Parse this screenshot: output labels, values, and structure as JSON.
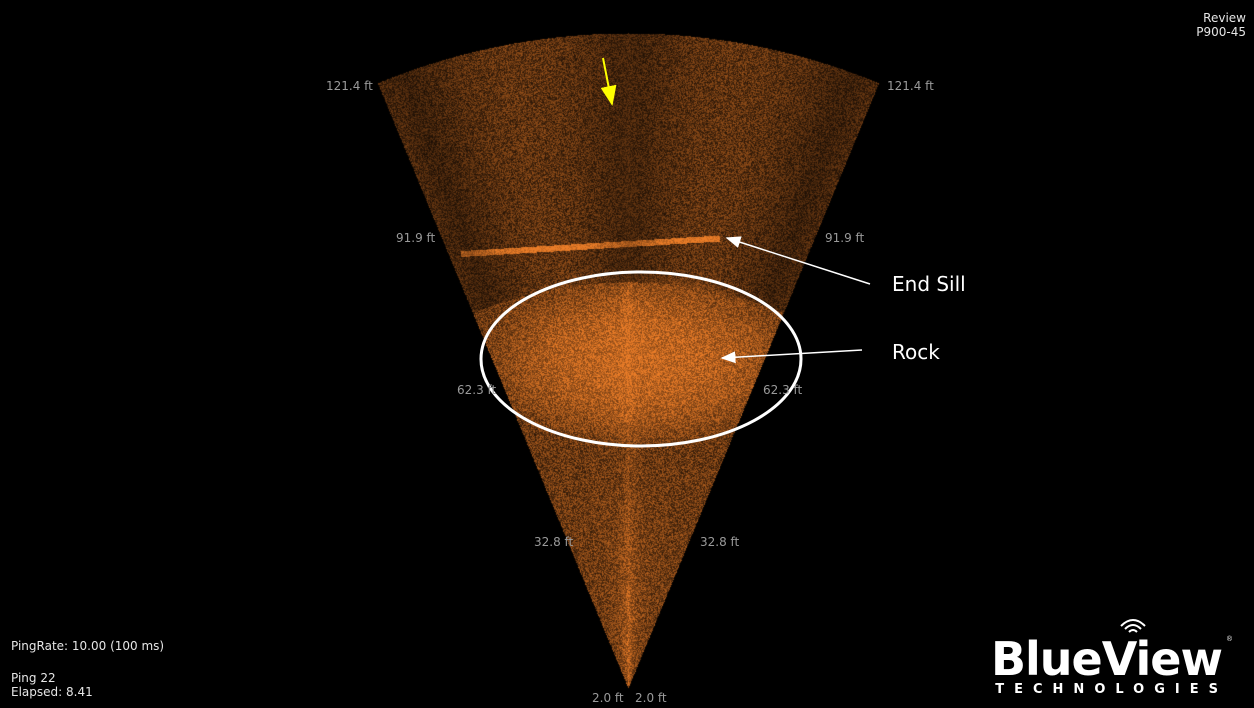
{
  "header": {
    "mode": "Review",
    "device": "P900-45"
  },
  "range_labels": {
    "r121": "121.4 ft",
    "r91": "91.9 ft",
    "r62": "62.3 ft",
    "r32": "32.8 ft",
    "r2": "2.0 ft"
  },
  "annotations": {
    "end_sill": "End Sill",
    "rock": "Rock",
    "pointer_color": "#ffff00",
    "ellipse_color": "#ffffff"
  },
  "status": {
    "ping_rate": "PingRate: 10.00 (100 ms)",
    "ping": "Ping 22",
    "elapsed": "Elapsed:  8.41"
  },
  "logo": {
    "word": "BlueView",
    "sub": "TECHNOLOGIES",
    "reg": "®",
    "icon": "sonar-waves-icon"
  },
  "colors": {
    "sonar_hue": "#c8641e",
    "background": "#000000"
  }
}
